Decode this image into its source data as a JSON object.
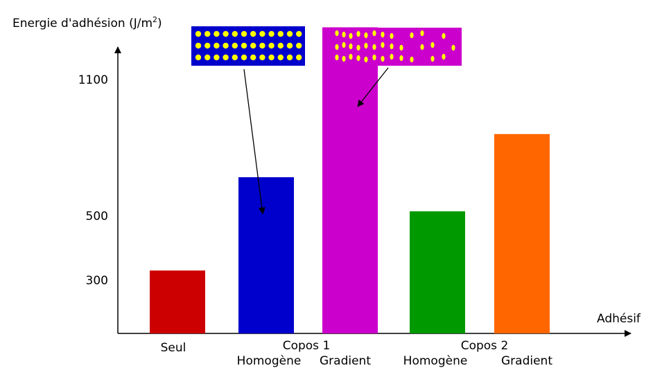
{
  "chart_data": {
    "type": "bar",
    "ylabel": "Energie d'adhésion (J/m",
    "ylabel_sup": "2",
    "ylabel_close": ")",
    "xlabel": "Adhésif",
    "yticks": [
      300,
      500,
      1100
    ],
    "ylim": [
      0,
      1350
    ],
    "bars": [
      {
        "label": "Seul",
        "value": 330,
        "color": "#cc0000"
      },
      {
        "label": "Homogène",
        "value": 670,
        "color": "#0000cc"
      },
      {
        "label": "Gradient",
        "value": 1330,
        "color": "#cc00cc"
      },
      {
        "label": "Homogène",
        "value": 520,
        "color": "#009900"
      },
      {
        "label": "Gradient",
        "value": 860,
        "color": "#ff6600"
      }
    ],
    "groups": [
      {
        "label": "Copos 1",
        "bars": [
          1,
          2
        ]
      },
      {
        "label": "Copos 2",
        "bars": [
          3,
          4
        ]
      }
    ],
    "insets": [
      {
        "name": "homogeneous-particles",
        "background": "#0000cc",
        "dot_color": "#ffff00",
        "points_to_bar": 1
      },
      {
        "name": "gradient-particles",
        "background": "#cc00cc",
        "dot_color": "#ffff00",
        "points_to_bar": 2
      }
    ]
  }
}
